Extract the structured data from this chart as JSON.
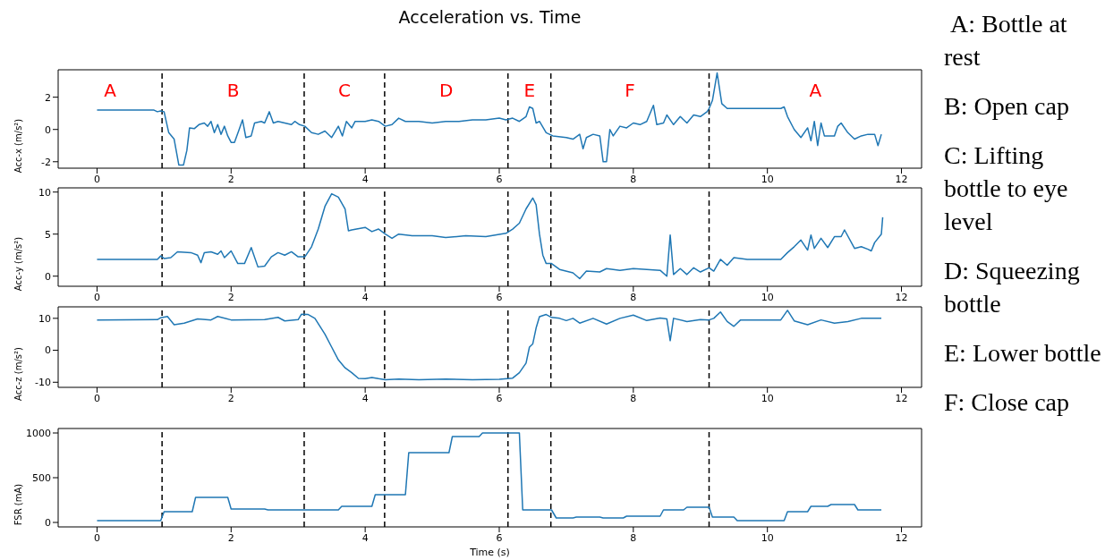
{
  "chart_data": [
    {
      "type": "line",
      "title": "Acceleration vs. Time",
      "ylabel": "Acc-x (m/s²)",
      "xlim": [
        -0.58,
        12.3
      ],
      "xticks": [
        0,
        2,
        4,
        6,
        8,
        10,
        12
      ],
      "ylim": [
        -2.4,
        3.7
      ],
      "yticks": [
        -2,
        0,
        2
      ],
      "grid": false,
      "annotations": [
        "A",
        "B",
        "C",
        "D",
        "E",
        "F",
        "A"
      ],
      "ref_lines": [
        {
          "axis": "x",
          "value": 0.97,
          "color": "#000000",
          "line_style": "dashed"
        },
        {
          "axis": "x",
          "value": 3.09,
          "color": "#000000",
          "line_style": "dashed"
        },
        {
          "axis": "x",
          "value": 4.29,
          "color": "#000000",
          "line_style": "dashed"
        },
        {
          "axis": "x",
          "value": 6.13,
          "color": "#000000",
          "line_style": "dashed"
        },
        {
          "axis": "x",
          "value": 6.77,
          "color": "#000000",
          "line_style": "dashed"
        },
        {
          "axis": "x",
          "value": 9.13,
          "color": "#000000",
          "line_style": "dashed"
        }
      ],
      "series": [
        {
          "color": "#1f77b4",
          "x": [
            0,
            0.85,
            0.9,
            0.95,
            1.0,
            1.07,
            1.15,
            1.22,
            1.29,
            1.34,
            1.38,
            1.45,
            1.52,
            1.6,
            1.65,
            1.7,
            1.75,
            1.8,
            1.85,
            1.9,
            1.95,
            2.0,
            2.05,
            2.12,
            2.17,
            2.22,
            2.3,
            2.35,
            2.45,
            2.5,
            2.57,
            2.63,
            2.7,
            2.8,
            2.9,
            2.95,
            3.02,
            3.1,
            3.2,
            3.3,
            3.4,
            3.5,
            3.6,
            3.66,
            3.72,
            3.8,
            3.85,
            4.0,
            4.1,
            4.2,
            4.3,
            4.4,
            4.5,
            4.6,
            4.8,
            5.0,
            5.2,
            5.4,
            5.6,
            5.8,
            6.0,
            6.1,
            6.2,
            6.3,
            6.4,
            6.45,
            6.5,
            6.55,
            6.6,
            6.7,
            6.8,
            7.0,
            7.1,
            7.2,
            7.25,
            7.3,
            7.4,
            7.5,
            7.55,
            7.6,
            7.65,
            7.7,
            7.8,
            7.9,
            8.0,
            8.1,
            8.2,
            8.3,
            8.35,
            8.45,
            8.5,
            8.6,
            8.7,
            8.8,
            8.9,
            9.0,
            9.1,
            9.13,
            9.18,
            9.25,
            9.32,
            9.4,
            9.5,
            10.2,
            10.25,
            10.3,
            10.4,
            10.5,
            10.6,
            10.65,
            10.7,
            10.75,
            10.8,
            10.85,
            11.0,
            11.05,
            11.1,
            11.2,
            11.3,
            11.4,
            11.5,
            11.6,
            11.65,
            11.7
          ],
          "values": [
            1.2,
            1.2,
            1.1,
            1.15,
            1.1,
            -0.2,
            -0.6,
            -2.2,
            -2.2,
            -1.3,
            0.1,
            0.05,
            0.3,
            0.4,
            0.2,
            0.5,
            -0.2,
            0.3,
            -0.3,
            0.2,
            -0.4,
            -0.8,
            -0.8,
            0,
            0.6,
            -0.5,
            -0.4,
            0.4,
            0.5,
            0.4,
            1.1,
            0.4,
            0.5,
            0.4,
            0.3,
            0.5,
            0.3,
            0.2,
            -0.2,
            -0.3,
            -0.1,
            -0.5,
            0.2,
            -0.4,
            0.5,
            0.1,
            0.5,
            0.5,
            0.6,
            0.5,
            0.2,
            0.3,
            0.7,
            0.5,
            0.5,
            0.4,
            0.5,
            0.5,
            0.6,
            0.6,
            0.7,
            0.6,
            0.7,
            0.5,
            0.8,
            1.4,
            1.3,
            0.4,
            0.5,
            -0.2,
            -0.4,
            -0.5,
            -0.6,
            -0.3,
            -1.2,
            -0.5,
            -0.3,
            -0.4,
            -2.0,
            -2.0,
            0.0,
            -0.4,
            0.2,
            0.1,
            0.4,
            0.3,
            0.5,
            1.5,
            0.3,
            0.4,
            0.9,
            0.3,
            0.8,
            0.4,
            0.9,
            0.8,
            1.1,
            1.3,
            1.8,
            3.5,
            1.6,
            1.3,
            1.3,
            1.3,
            1.4,
            0.8,
            0.0,
            -0.5,
            0.1,
            -0.7,
            0.5,
            -1.0,
            0.4,
            -0.4,
            -0.4,
            0.2,
            0.4,
            -0.2,
            -0.6,
            -0.4,
            -0.3,
            -0.3,
            -1.0,
            -0.3
          ]
        }
      ]
    },
    {
      "type": "line",
      "ylabel": "Acc-y (m/s²)",
      "xlim": [
        -0.58,
        12.3
      ],
      "xticks": [
        0,
        2,
        4,
        6,
        8,
        10,
        12
      ],
      "ylim": [
        -1.2,
        10.5
      ],
      "yticks": [
        0,
        5,
        10
      ],
      "grid": false,
      "ref_lines": [
        {
          "axis": "x",
          "value": 0.97,
          "color": "#000000",
          "line_style": "dashed"
        },
        {
          "axis": "x",
          "value": 3.09,
          "color": "#000000",
          "line_style": "dashed"
        },
        {
          "axis": "x",
          "value": 4.29,
          "color": "#000000",
          "line_style": "dashed"
        },
        {
          "axis": "x",
          "value": 6.13,
          "color": "#000000",
          "line_style": "dashed"
        },
        {
          "axis": "x",
          "value": 6.77,
          "color": "#000000",
          "line_style": "dashed"
        },
        {
          "axis": "x",
          "value": 9.13,
          "color": "#000000",
          "line_style": "dashed"
        }
      ],
      "series": [
        {
          "color": "#1f77b4",
          "x": [
            0,
            0.9,
            0.95,
            1.0,
            1.1,
            1.2,
            1.4,
            1.5,
            1.55,
            1.6,
            1.7,
            1.8,
            1.85,
            1.9,
            2.0,
            2.1,
            2.2,
            2.3,
            2.4,
            2.5,
            2.6,
            2.7,
            2.8,
            2.9,
            3.0,
            3.1,
            3.2,
            3.3,
            3.4,
            3.5,
            3.6,
            3.7,
            3.75,
            3.8,
            4.0,
            4.1,
            4.2,
            4.3,
            4.4,
            4.5,
            4.7,
            5.0,
            5.2,
            5.5,
            5.8,
            6.1,
            6.2,
            6.3,
            6.4,
            6.5,
            6.55,
            6.6,
            6.65,
            6.7,
            6.78,
            6.9,
            7.1,
            7.2,
            7.3,
            7.5,
            7.6,
            7.8,
            8.0,
            8.2,
            8.4,
            8.5,
            8.55,
            8.6,
            8.7,
            8.8,
            8.9,
            9.0,
            9.13,
            9.2,
            9.3,
            9.4,
            9.5,
            9.7,
            10.2,
            10.3,
            10.4,
            10.5,
            10.6,
            10.65,
            10.7,
            10.8,
            10.9,
            11.0,
            11.1,
            11.15,
            11.3,
            11.4,
            11.5,
            11.55,
            11.6,
            11.7,
            11.72
          ],
          "values": [
            2.0,
            2.0,
            2.4,
            2.1,
            2.2,
            2.9,
            2.8,
            2.5,
            1.6,
            2.8,
            2.9,
            2.6,
            3.0,
            2.2,
            3.0,
            1.5,
            1.5,
            3.4,
            1.1,
            1.2,
            2.3,
            2.8,
            2.5,
            2.9,
            2.3,
            2.3,
            3.5,
            5.6,
            8.3,
            9.8,
            9.4,
            8.0,
            5.4,
            5.5,
            5.8,
            5.3,
            5.6,
            5.0,
            4.5,
            5.0,
            4.8,
            4.8,
            4.6,
            4.8,
            4.7,
            5.1,
            5.6,
            6.3,
            8.0,
            9.3,
            8.5,
            5.0,
            2.5,
            1.5,
            1.5,
            0.8,
            0.4,
            -0.3,
            0.6,
            0.5,
            0.9,
            0.7,
            0.9,
            0.8,
            0.7,
            0.0,
            4.9,
            0.2,
            0.9,
            0.2,
            1.0,
            0.5,
            1.0,
            0.6,
            2.0,
            1.3,
            2.2,
            2.0,
            2.0,
            2.8,
            3.5,
            4.3,
            3.1,
            4.9,
            3.3,
            4.5,
            3.4,
            4.7,
            4.7,
            5.5,
            3.3,
            3.5,
            3.2,
            3.0,
            4.0,
            5.0,
            7.0
          ]
        }
      ]
    },
    {
      "type": "line",
      "ylabel": "Acc-z (m/s²)",
      "xlim": [
        -0.58,
        12.3
      ],
      "xticks": [
        0,
        2,
        4,
        6,
        8,
        10,
        12
      ],
      "ylim": [
        -11.6,
        13.6
      ],
      "yticks": [
        -10,
        0,
        10
      ],
      "grid": false,
      "ref_lines": [
        {
          "axis": "x",
          "value": 0.97,
          "color": "#000000",
          "line_style": "dashed"
        },
        {
          "axis": "x",
          "value": 3.09,
          "color": "#000000",
          "line_style": "dashed"
        },
        {
          "axis": "x",
          "value": 4.29,
          "color": "#000000",
          "line_style": "dashed"
        },
        {
          "axis": "x",
          "value": 6.13,
          "color": "#000000",
          "line_style": "dashed"
        },
        {
          "axis": "x",
          "value": 6.77,
          "color": "#000000",
          "line_style": "dashed"
        },
        {
          "axis": "x",
          "value": 9.13,
          "color": "#000000",
          "line_style": "dashed"
        }
      ],
      "series": [
        {
          "color": "#1f77b4",
          "x": [
            0,
            0.9,
            0.95,
            1.05,
            1.15,
            1.3,
            1.5,
            1.7,
            1.8,
            2.0,
            2.5,
            2.7,
            2.8,
            3.0,
            3.05,
            3.15,
            3.25,
            3.4,
            3.5,
            3.6,
            3.7,
            3.8,
            3.9,
            4.0,
            4.1,
            4.2,
            4.3,
            4.5,
            4.8,
            5.2,
            5.6,
            6.0,
            6.2,
            6.3,
            6.4,
            6.45,
            6.5,
            6.55,
            6.6,
            6.7,
            6.78,
            6.9,
            7.0,
            7.1,
            7.2,
            7.4,
            7.6,
            7.8,
            8.0,
            8.2,
            8.4,
            8.5,
            8.55,
            8.6,
            8.8,
            9.0,
            9.13,
            9.2,
            9.3,
            9.4,
            9.5,
            9.6,
            10.2,
            10.3,
            10.4,
            10.6,
            10.8,
            11.0,
            11.2,
            11.4,
            11.7
          ],
          "values": [
            9.5,
            9.6,
            10.2,
            10.6,
            8.0,
            8.5,
            9.8,
            9.5,
            10.6,
            9.5,
            9.6,
            10.3,
            9.2,
            9.6,
            11.3,
            11.2,
            10.0,
            5.0,
            1.0,
            -3.0,
            -5.5,
            -7.0,
            -8.8,
            -8.9,
            -8.5,
            -8.9,
            -9.2,
            -9.0,
            -9.2,
            -9.0,
            -9.2,
            -9.1,
            -8.7,
            -7.0,
            -4.0,
            1.0,
            2.0,
            7.0,
            10.5,
            11.2,
            10.3,
            10.0,
            9.3,
            10.0,
            8.5,
            10.0,
            8.2,
            10.0,
            11.0,
            9.3,
            10.1,
            9.8,
            3.0,
            10.0,
            9.0,
            9.6,
            9.5,
            10.0,
            12.0,
            9.0,
            7.5,
            9.5,
            9.5,
            12.5,
            9.2,
            8.0,
            9.5,
            8.5,
            9.0,
            10.0,
            10.0
          ]
        }
      ]
    },
    {
      "type": "line",
      "ylabel": "FSR (mA)",
      "xlabel": "Time (s)",
      "xlim": [
        -0.58,
        12.3
      ],
      "xticks": [
        0,
        2,
        4,
        6,
        8,
        10,
        12
      ],
      "ylim": [
        -50,
        1050
      ],
      "yticks": [
        0,
        500,
        1000
      ],
      "grid": false,
      "ref_lines": [
        {
          "axis": "x",
          "value": 0.97,
          "color": "#000000",
          "line_style": "dashed"
        },
        {
          "axis": "x",
          "value": 3.09,
          "color": "#000000",
          "line_style": "dashed"
        },
        {
          "axis": "x",
          "value": 4.29,
          "color": "#000000",
          "line_style": "dashed"
        },
        {
          "axis": "x",
          "value": 6.13,
          "color": "#000000",
          "line_style": "dashed"
        },
        {
          "axis": "x",
          "value": 6.77,
          "color": "#000000",
          "line_style": "dashed"
        },
        {
          "axis": "x",
          "value": 9.13,
          "color": "#000000",
          "line_style": "dashed"
        }
      ],
      "series": [
        {
          "color": "#1f77b4",
          "x": [
            0,
            0.95,
            1.0,
            1.42,
            1.47,
            1.95,
            2.0,
            2.5,
            2.55,
            3.6,
            3.65,
            4.1,
            4.15,
            4.6,
            4.65,
            5.25,
            5.3,
            5.7,
            5.75,
            6.3,
            6.35,
            6.78,
            6.85,
            7.1,
            7.15,
            7.5,
            7.55,
            7.85,
            7.9,
            8.4,
            8.45,
            8.75,
            8.8,
            9.13,
            9.18,
            9.5,
            9.55,
            10.25,
            10.3,
            10.6,
            10.65,
            10.9,
            10.95,
            11.3,
            11.35,
            11.7
          ],
          "values": [
            20,
            20,
            120,
            120,
            280,
            280,
            150,
            150,
            140,
            140,
            180,
            180,
            310,
            310,
            780,
            780,
            960,
            960,
            1000,
            1000,
            140,
            140,
            50,
            50,
            60,
            60,
            50,
            50,
            70,
            70,
            140,
            140,
            170,
            170,
            60,
            60,
            20,
            20,
            120,
            120,
            180,
            180,
            200,
            200,
            140,
            140
          ]
        }
      ]
    },
    {
      "type": "other",
      "annotations": [
        " A: Bottle at rest",
        "B: Open cap",
        "C: Lifting bottle to eye level",
        "D: Squeezing bottle",
        "E: Lower bottle",
        "F: Close cap"
      ]
    }
  ]
}
